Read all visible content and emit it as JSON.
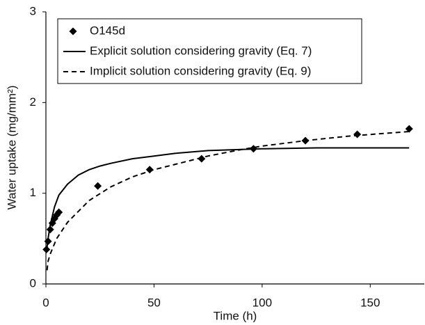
{
  "chart_data": {
    "type": "line",
    "xlabel": "Time (h)",
    "ylabel": "Water uptake (mg/mm²)",
    "xlim": [
      0,
      175
    ],
    "ylim": [
      0,
      3
    ],
    "xticks": [
      0,
      50,
      100,
      150
    ],
    "yticks": [
      0,
      1,
      2,
      3
    ],
    "grid": false,
    "legend": "upper left",
    "series": [
      {
        "name": "O145d",
        "color": "#000000",
        "style": "markers",
        "x": [
          0.25,
          1,
          2,
          3,
          4,
          5,
          6,
          24,
          48,
          72,
          96,
          120,
          144,
          168
        ],
        "values": [
          0.38,
          0.47,
          0.6,
          0.67,
          0.72,
          0.76,
          0.79,
          1.08,
          1.26,
          1.38,
          1.49,
          1.58,
          1.65,
          1.71
        ]
      },
      {
        "name": "Explicit solution considering gravity (Eq. 7)",
        "color": "#000000",
        "style": "solid",
        "x": [
          0.5,
          1,
          2,
          4,
          6,
          10,
          15,
          20,
          25,
          30,
          40,
          50,
          60,
          75,
          100,
          125,
          150,
          168
        ],
        "values": [
          0.4,
          0.5,
          0.65,
          0.85,
          0.98,
          1.1,
          1.2,
          1.26,
          1.3,
          1.33,
          1.38,
          1.41,
          1.44,
          1.47,
          1.49,
          1.5,
          1.5,
          1.5
        ]
      },
      {
        "name": "Implicit solution considering gravity (Eq. 9)",
        "color": "#000000",
        "style": "dashed",
        "x": [
          0.5,
          1,
          2,
          5,
          10,
          20,
          30,
          40,
          50,
          60,
          75,
          90,
          100,
          120,
          140,
          168
        ],
        "values": [
          0.15,
          0.25,
          0.33,
          0.5,
          0.68,
          0.92,
          1.07,
          1.18,
          1.26,
          1.32,
          1.41,
          1.48,
          1.52,
          1.58,
          1.63,
          1.68
        ]
      }
    ]
  }
}
